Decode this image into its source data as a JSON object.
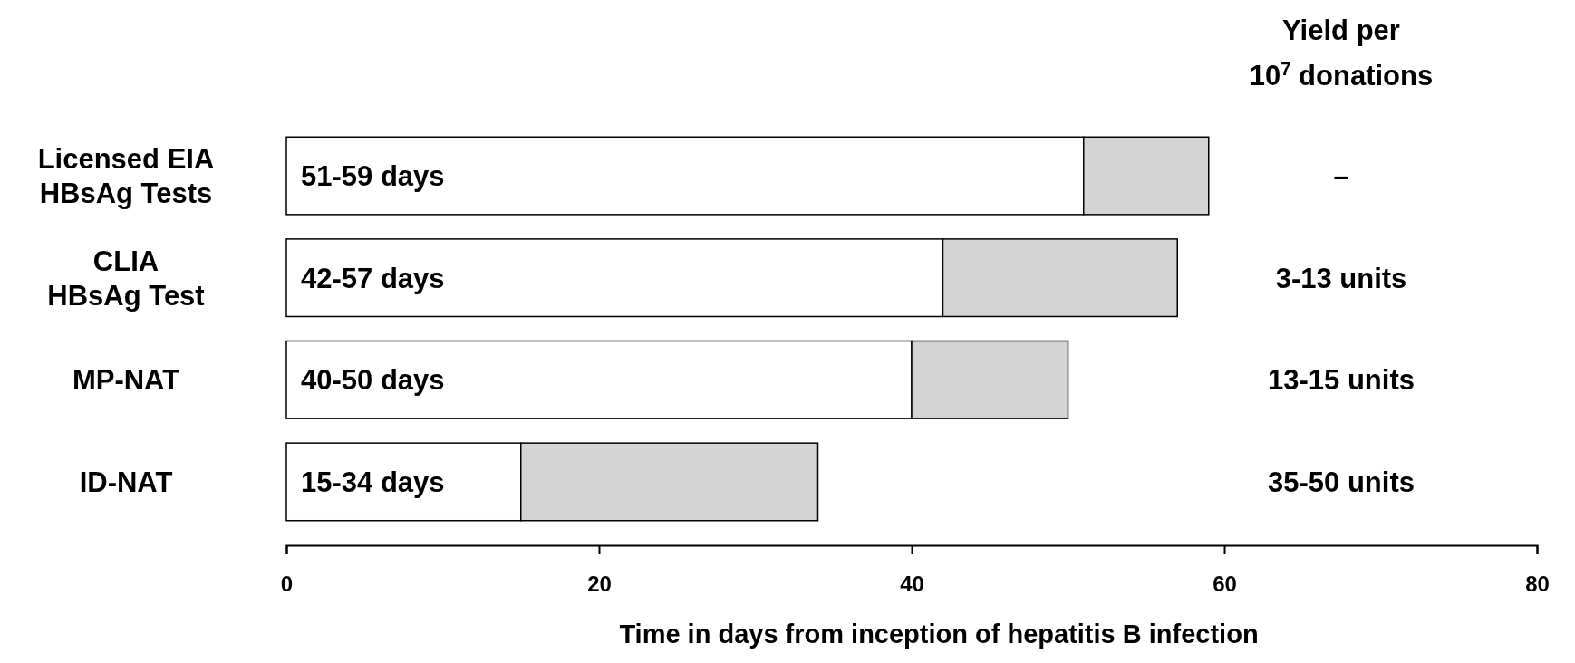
{
  "chart_data": {
    "type": "bar",
    "orientation": "horizontal",
    "stacked": true,
    "categories": [
      "Licensed EIA\nHBsAg Tests",
      "CLIA\nHBsAg Test",
      "MP-NAT",
      "ID-NAT"
    ],
    "series": [
      {
        "color": "#ffffff",
        "values": [
          51,
          42,
          40,
          15
        ],
        "value_labels": [
          "51-59 days",
          "42-57 days",
          "40-50 days",
          "15-34 days"
        ]
      },
      {
        "color": "#d4d4d4",
        "values": [
          8,
          15,
          10,
          19
        ]
      }
    ],
    "xlim": [
      0,
      80
    ],
    "xticks": [
      0,
      20,
      40,
      60,
      80
    ],
    "xlabel": "Time in days from inception of hepatitis B infection",
    "annotations": [
      "Yield per\n10$^{7}$ donations",
      "–",
      "3-13 units",
      "13-15 units",
      "35-50 units"
    ]
  }
}
